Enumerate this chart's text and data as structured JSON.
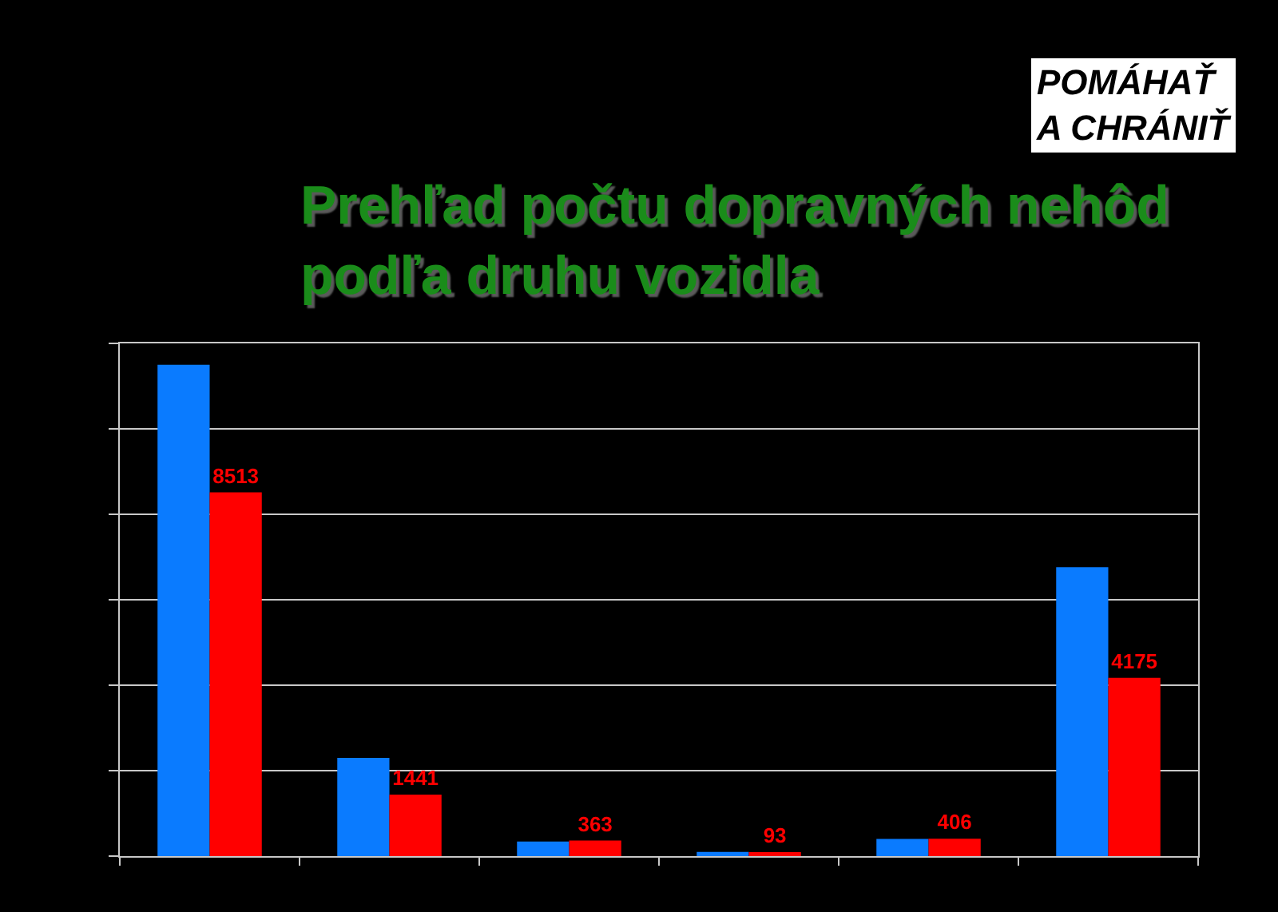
{
  "chart_data": {
    "type": "bar",
    "title": "Prehľad počtu dopravných nehôd\npodľa druhu vozidla",
    "annotations": [
      "POMÁHAŤ\nA CHRÁNIŤ"
    ],
    "categories": [
      null,
      null,
      null,
      null,
      null,
      null
    ],
    "series": [
      {
        "color": "#0a7bff",
        "values": [
          11500,
          2300,
          340,
          100,
          400,
          6760
        ]
      },
      {
        "color": "#ff0000",
        "values": [
          8513,
          1441,
          363,
          93,
          406,
          4175
        ],
        "value_labels": [
          "8513",
          "1441",
          "363",
          "93",
          "406",
          "4175"
        ]
      }
    ],
    "ylim": [
      0,
      12000
    ],
    "yticks": [
      {
        "value": 0,
        "label": null
      },
      {
        "value": 2000,
        "label": null
      },
      {
        "value": 4000,
        "label": null
      },
      {
        "value": 6000,
        "label": null
      },
      {
        "value": 8000,
        "label": null
      },
      {
        "value": 10000,
        "label": null
      },
      {
        "value": 12000,
        "label": null
      }
    ],
    "grid": "y"
  }
}
